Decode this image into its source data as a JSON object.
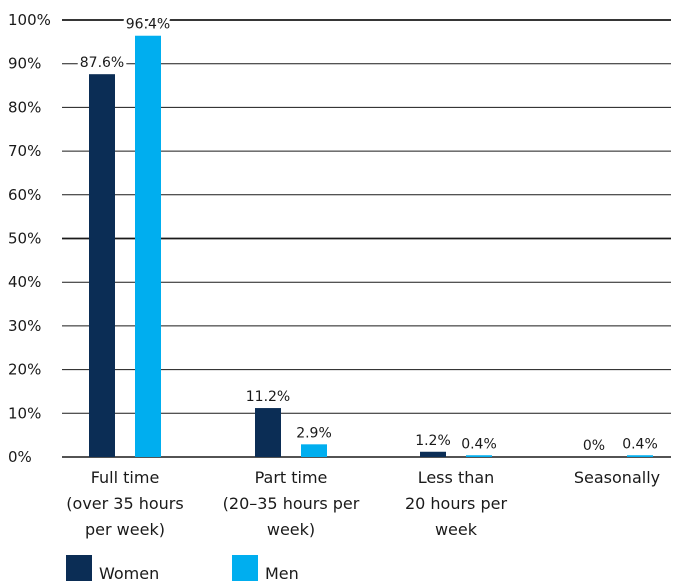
{
  "chart_data": {
    "type": "bar",
    "categories": [
      [
        "Full time",
        "(over 35 hours",
        "per week)"
      ],
      [
        "Part time",
        "(20–35 hours per",
        "week)"
      ],
      [
        "Less than",
        "20 hours per",
        "week"
      ],
      [
        "Seasonally"
      ]
    ],
    "series": [
      {
        "name": "Women",
        "color": "#0b2d55",
        "values": [
          87.6,
          11.2,
          1.2,
          0
        ],
        "labels": [
          "87.6%",
          "11.2%",
          "1.2%",
          "0%"
        ]
      },
      {
        "name": "Men",
        "color": "#00aeef",
        "values": [
          96.4,
          2.9,
          0.4,
          0.4
        ],
        "labels": [
          "96.4%",
          "2.9%",
          "0.4%",
          "0.4%"
        ]
      }
    ],
    "ylim": [
      0,
      100
    ],
    "yticks": [
      0,
      10,
      20,
      30,
      40,
      50,
      60,
      70,
      80,
      90,
      100
    ],
    "ytick_labels": [
      "0%",
      "10%",
      "20%",
      "30%",
      "40%",
      "50%",
      "60%",
      "70%",
      "80%",
      "90%",
      "100%"
    ],
    "grid": true,
    "legend_position": "bottom-left"
  }
}
